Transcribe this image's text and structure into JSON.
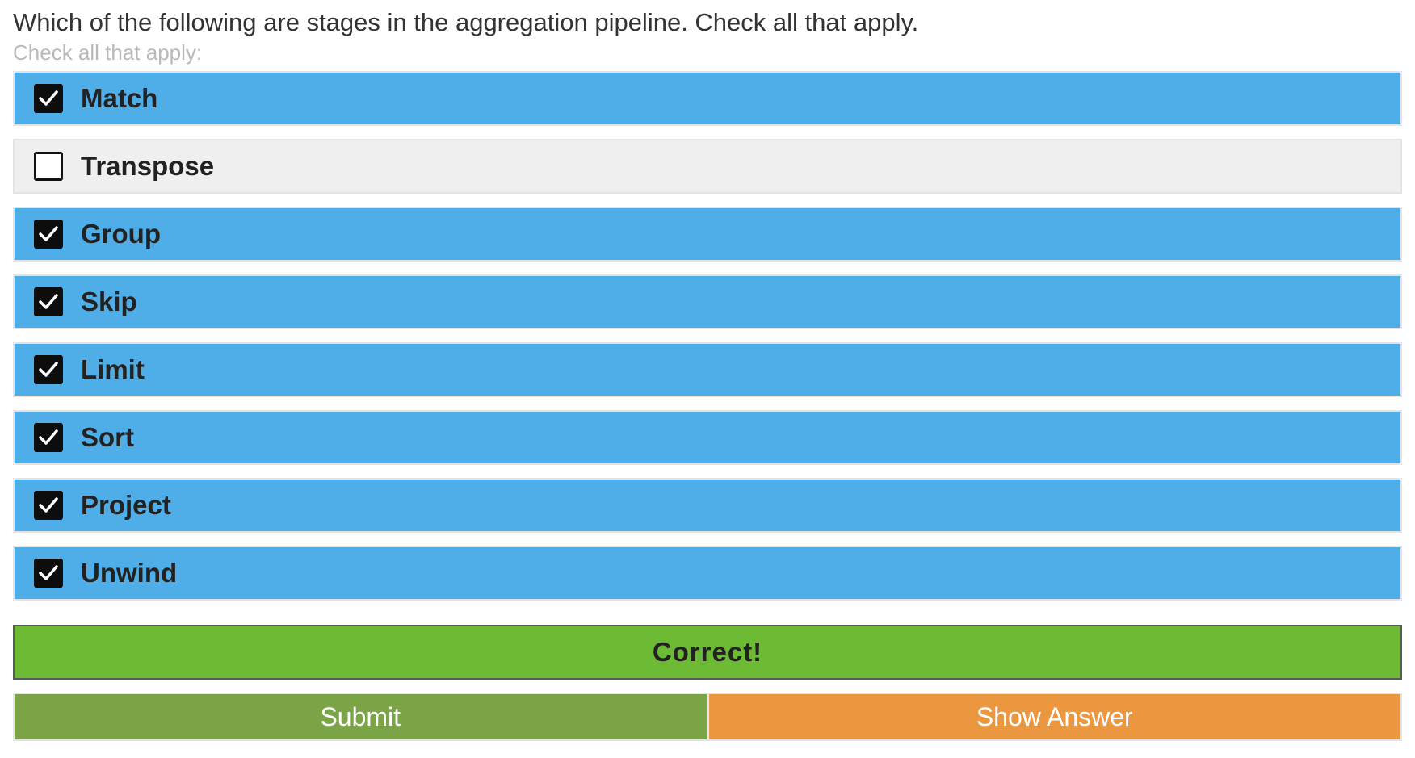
{
  "question": {
    "text": "Which of the following are stages in the aggregation pipeline. Check all that apply.",
    "hint": "Check all that apply:"
  },
  "options": [
    {
      "label": "Match",
      "checked": true
    },
    {
      "label": "Transpose",
      "checked": false
    },
    {
      "label": "Group",
      "checked": true
    },
    {
      "label": "Skip",
      "checked": true
    },
    {
      "label": "Limit",
      "checked": true
    },
    {
      "label": "Sort",
      "checked": true
    },
    {
      "label": "Project",
      "checked": true
    },
    {
      "label": "Unwind",
      "checked": true
    }
  ],
  "feedback": {
    "text": "Correct!"
  },
  "actions": {
    "submit_label": "Submit",
    "show_answer_label": "Show Answer"
  },
  "colors": {
    "checked_bg": "#4faee8",
    "unchecked_bg": "#efefef",
    "correct_bg": "#6dba35",
    "submit_bg": "#7aa446",
    "show_answer_bg": "#ea9740"
  },
  "icons": {
    "checked": "checkbox-checked-icon",
    "unchecked": "checkbox-unchecked-icon"
  }
}
